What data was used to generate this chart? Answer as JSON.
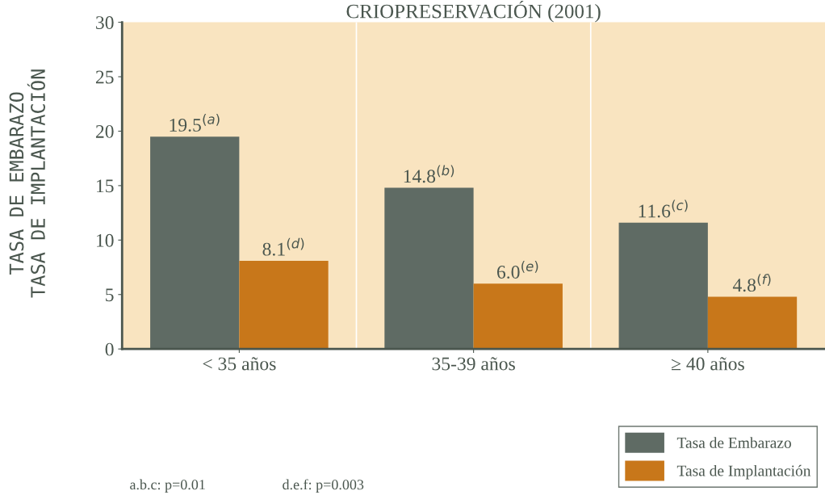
{
  "chart_data": {
    "type": "bar",
    "title": "CRIOPRESERVACIÓN (2001)",
    "ylabel": "TASA DE EMBARAZO\nTASA DE IMPLANTACIÓN",
    "categories": [
      "< 35 años",
      "35-39 años",
      "≥ 40 años"
    ],
    "series": [
      {
        "name": "Tasa de Embarazo",
        "color": "#5f6b64",
        "values": [
          19.5,
          14.8,
          11.6
        ]
      },
      {
        "name": "Tasa de Implantación",
        "color": "#c8771a",
        "values": [
          8.1,
          6.0,
          4.8
        ]
      }
    ],
    "value_labels": [
      [
        "19.5$^{(a)}$",
        "14.8$^{(b)}$",
        "11.6$^{(c)}$"
      ],
      [
        "8.1$^{(d)}$",
        "6.0$^{(e)}$",
        "4.8$^{(f)}$"
      ]
    ],
    "ylim": [
      0,
      30
    ],
    "yticks": [
      0,
      5,
      10,
      15,
      20,
      25,
      30
    ],
    "legend": "bottom right",
    "annotations": [
      "a.b.c: p=0.01",
      "d.e.f: p=0.003"
    ]
  }
}
